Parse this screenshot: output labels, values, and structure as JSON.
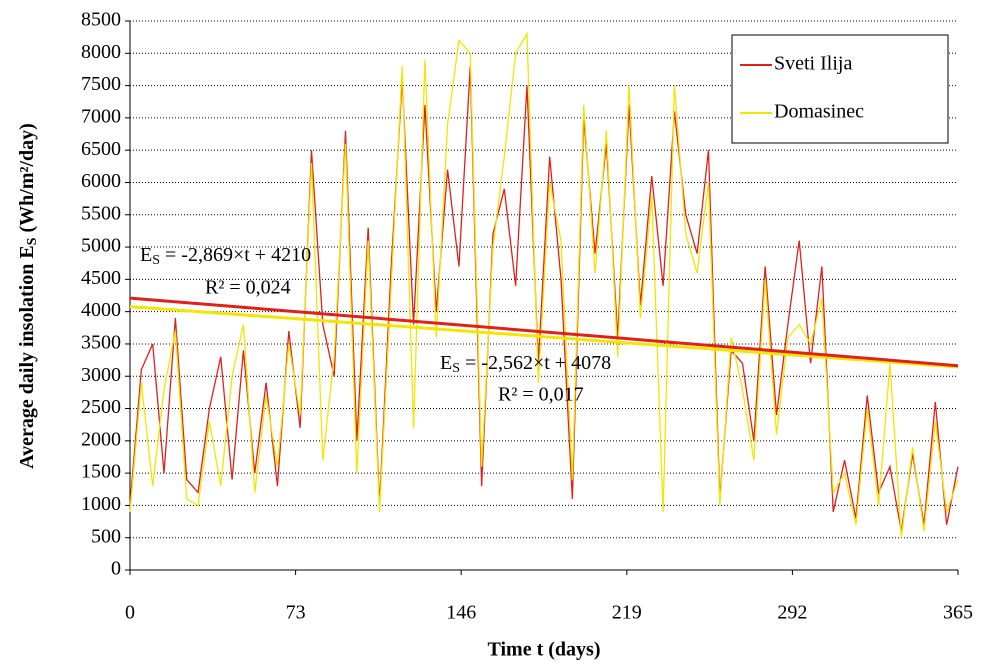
{
  "chart_data": {
    "type": "line",
    "x_label": "Time t (days)",
    "y_label": {
      "main": "Average daily insolation E",
      "sub": "S",
      "unit": " (Wh/m²/day)"
    },
    "x": [
      0,
      5,
      10,
      15,
      20,
      25,
      30,
      35,
      40,
      45,
      50,
      55,
      60,
      65,
      70,
      75,
      80,
      85,
      90,
      95,
      100,
      105,
      110,
      115,
      120,
      125,
      130,
      135,
      140,
      145,
      150,
      155,
      160,
      165,
      170,
      175,
      180,
      185,
      190,
      195,
      200,
      205,
      210,
      215,
      220,
      225,
      230,
      235,
      240,
      245,
      250,
      255,
      260,
      265,
      270,
      275,
      280,
      285,
      290,
      295,
      300,
      305,
      310,
      315,
      320,
      325,
      330,
      335,
      340,
      345,
      350,
      355,
      360,
      365
    ],
    "series": [
      {
        "name": "Sveti Ilija",
        "color": "#e0201b",
        "values": [
          1000,
          3100,
          3500,
          1500,
          3900,
          1400,
          1200,
          2500,
          3300,
          1400,
          3400,
          1500,
          2900,
          1300,
          3700,
          2200,
          6500,
          3800,
          3000,
          6800,
          2000,
          5300,
          1000,
          4600,
          7600,
          3800,
          7200,
          4000,
          6200,
          4700,
          7800,
          1300,
          5200,
          5900,
          4400,
          7500,
          3200,
          6400,
          4500,
          1100,
          7000,
          4900,
          6600,
          3600,
          7200,
          4100,
          6100,
          4400,
          7100,
          5500,
          4900,
          6500,
          1100,
          3400,
          3200,
          2000,
          4700,
          2400,
          3800,
          5100,
          3200,
          4700,
          900,
          1700,
          800,
          2700,
          1200,
          1600,
          600,
          1800,
          700,
          2600,
          700,
          1600
        ]
      },
      {
        "name": "Domasinec",
        "color": "#f2e600",
        "values": [
          900,
          2900,
          1300,
          2800,
          3700,
          1100,
          1000,
          2300,
          1300,
          3000,
          3800,
          1200,
          2700,
          1600,
          3500,
          2400,
          6300,
          1700,
          3300,
          6600,
          1500,
          5100,
          900,
          4300,
          7800,
          2200,
          7900,
          3600,
          6900,
          8200,
          8000,
          1600,
          5000,
          6400,
          8000,
          8300,
          2900,
          6000,
          5100,
          1400,
          7200,
          4600,
          6800,
          3300,
          7500,
          3900,
          5800,
          900,
          7500,
          5200,
          4600,
          6000,
          1000,
          3600,
          2800,
          1700,
          4500,
          2100,
          3600,
          3800,
          3500,
          4200,
          1200,
          1500,
          700,
          2500,
          1000,
          3200,
          500,
          1900,
          600,
          2300,
          900,
          1400
        ]
      }
    ],
    "trendlines": [
      {
        "color": "#f2e600",
        "x": [
          0,
          365
        ],
        "values": [
          4078,
          3143
        ]
      },
      {
        "color": "#e0201b",
        "x": [
          0,
          365
        ],
        "values": [
          4210,
          3163
        ]
      }
    ],
    "annotations": [
      {
        "lhs": "E",
        "sub": "S",
        "rhs": " = -2,869×t + 4210",
        "r2": "R² = 0,024"
      },
      {
        "lhs": "E",
        "sub": "S",
        "rhs": " = -2,562×t + 4078",
        "r2": "R² = 0,017"
      }
    ],
    "xlim": [
      0,
      365
    ],
    "xticks": [
      0,
      73,
      146,
      219,
      292,
      365
    ],
    "ylim": [
      0,
      8500
    ],
    "yticks": [
      0,
      500,
      1000,
      1500,
      2000,
      2500,
      3000,
      3500,
      4000,
      4500,
      5000,
      5500,
      6000,
      6500,
      7000,
      7500,
      8000,
      8500
    ],
    "grid": true,
    "legend": "top-right"
  }
}
